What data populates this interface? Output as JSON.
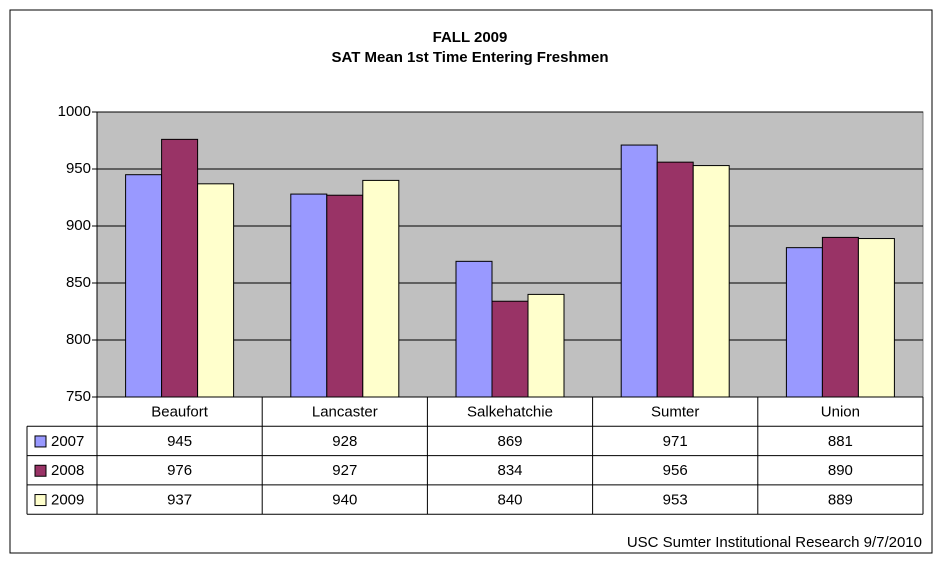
{
  "chart_data": {
    "type": "bar",
    "title": "FALL 2009",
    "subtitle": "SAT Mean 1st Time Entering Freshmen",
    "annotation": "USC Sumter Institutional Research 9/7/2010",
    "categories": [
      "Beaufort",
      "Lancaster",
      "Salkehatchie",
      "Sumter",
      "Union"
    ],
    "series": [
      {
        "name": "2007",
        "color": "#9999ff",
        "values": [
          945,
          928,
          869,
          971,
          881
        ]
      },
      {
        "name": "2008",
        "color": "#993366",
        "values": [
          976,
          927,
          834,
          956,
          890
        ]
      },
      {
        "name": "2009",
        "color": "#ffffcc",
        "values": [
          937,
          940,
          840,
          953,
          889
        ]
      }
    ],
    "ylim": [
      750,
      1000
    ],
    "yticks": [
      750,
      800,
      850,
      900,
      950,
      1000
    ],
    "grid": true,
    "plot_background": "#c0c0c0"
  }
}
